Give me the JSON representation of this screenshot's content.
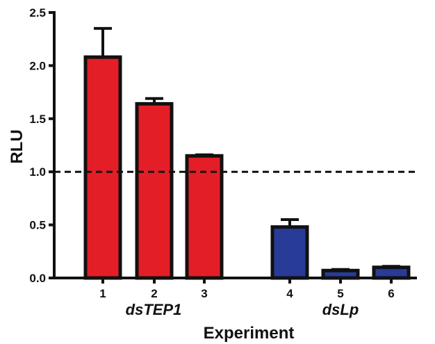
{
  "chart_data": {
    "type": "bar",
    "categories": [
      "1",
      "2",
      "3",
      "4",
      "5",
      "6"
    ],
    "values": [
      2.08,
      1.64,
      1.15,
      0.48,
      0.07,
      0.1
    ],
    "errors": [
      0.27,
      0.05,
      0.01,
      0.07,
      0.01,
      0.01
    ],
    "groups": [
      {
        "label": "dsTEP1",
        "members": [
          0,
          1,
          2
        ],
        "color": "#e41e26"
      },
      {
        "label": "dsLp",
        "members": [
          3,
          4,
          5
        ],
        "color": "#283b97"
      }
    ],
    "bar_colors": [
      "#e41e26",
      "#e41e26",
      "#e41e26",
      "#283b97",
      "#283b97",
      "#283b97"
    ],
    "reference_line": 1.0,
    "xlabel": "Experiment",
    "ylabel": "RLU",
    "ylim": [
      0,
      2.5
    ],
    "yticks": [
      "0.0",
      "0.5",
      "1.0",
      "1.5",
      "2.0",
      "2.5"
    ],
    "grid": false
  }
}
